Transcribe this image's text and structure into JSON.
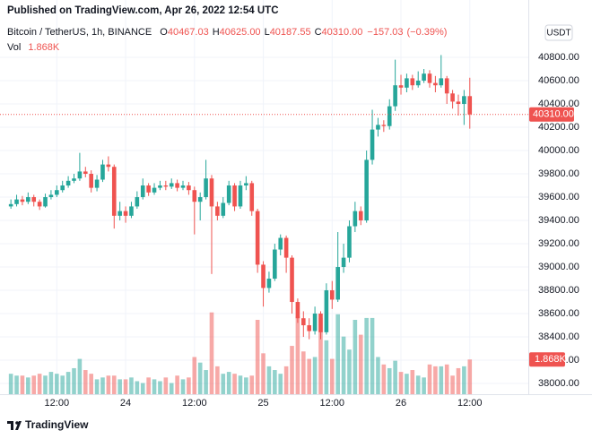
{
  "chart_data": {
    "type": "candlestick",
    "published": "Published on TradingView.com, Apr 26, 2022 12:54 UTC",
    "symbol": "Bitcoin / TetherUS, 1h, BINANCE",
    "ohlc_names": [
      "O",
      "H",
      "L",
      "C"
    ],
    "ohlc_labels": [
      "40467.03",
      "40625.00",
      "40187.55",
      "40310.00"
    ],
    "change": -157.03,
    "change_label": "−157.03",
    "change_percent": -0.39,
    "change_percent_label": "(−0.39%)",
    "volume_name": "Vol",
    "last_volume_label": "1.868K",
    "last_price_label": "40310.00",
    "currency": "USDT",
    "logo": "TradingView",
    "up_color": "#26a69a",
    "down_color": "#ef5350",
    "xlim": [
      -1.9,
      90.2
    ],
    "xticks": [
      {
        "value": 8,
        "label": "12:00"
      },
      {
        "value": 20,
        "label": "24"
      },
      {
        "value": 32,
        "label": "12:00"
      },
      {
        "value": 44,
        "label": "25"
      },
      {
        "value": 56,
        "label": "12:00"
      },
      {
        "value": 68,
        "label": "26"
      },
      {
        "value": 80,
        "label": "12:00"
      }
    ],
    "ylim": [
      37908,
      41100
    ],
    "yticks": [
      {
        "value": 38000,
        "label": "38000.00"
      },
      {
        "value": 38200,
        "label": "38200.00"
      },
      {
        "value": 38400,
        "label": "38400.00"
      },
      {
        "value": 38600,
        "label": "38600.00"
      },
      {
        "value": 38800,
        "label": "38800.00"
      },
      {
        "value": 39000,
        "label": "39000.00"
      },
      {
        "value": 39200,
        "label": "39200.00"
      },
      {
        "value": 39400,
        "label": "39400.00"
      },
      {
        "value": 39600,
        "label": "39600.00"
      },
      {
        "value": 39800,
        "label": "39800.00"
      },
      {
        "value": 40000,
        "label": "40000.00"
      },
      {
        "value": 40200,
        "label": "40200.00"
      },
      {
        "value": 40400,
        "label": "40400.00"
      },
      {
        "value": 40600,
        "label": "40600.00"
      },
      {
        "value": 40800,
        "label": "40800.00"
      }
    ],
    "volume_ylim": [
      0,
      20
    ],
    "open": [
      39520,
      39540,
      39580,
      39560,
      39600,
      39560,
      39520,
      39600,
      39620,
      39660,
      39700,
      39740,
      39760,
      39820,
      39800,
      39680,
      39750,
      39880,
      39860,
      39440,
      39480,
      39440,
      39520,
      39600,
      39700,
      39640,
      39680,
      39700,
      39690,
      39720,
      39680,
      39700,
      39660,
      39560,
      39600,
      39760,
      39520,
      39440,
      39550,
      39700,
      39520,
      39700,
      39720,
      39480,
      39020,
      38820,
      38900,
      39150,
      39250,
      39080,
      38700,
      38560,
      38500,
      38450,
      38600,
      38440,
      38800,
      38720,
      39000,
      39080,
      39350,
      39480,
      39400,
      39920,
      40180,
      40220,
      40210,
      40380,
      40560,
      40540,
      40620,
      40560,
      40600,
      40660,
      40580,
      40560,
      40620,
      40490,
      40420,
      40400,
      40467.03
    ],
    "high": [
      39580,
      39620,
      39610,
      39640,
      39620,
      39580,
      39630,
      39660,
      39700,
      39740,
      39780,
      39800,
      39980,
      39860,
      39830,
      39790,
      39920,
      39950,
      39880,
      39560,
      39520,
      39560,
      39650,
      39760,
      39720,
      39720,
      39740,
      39740,
      39760,
      39750,
      39740,
      39730,
      39690,
      39640,
      39920,
      39790,
      39560,
      39600,
      39740,
      39720,
      39740,
      39780,
      39740,
      39500,
      39050,
      38960,
      39200,
      39280,
      39270,
      39100,
      38730,
      38620,
      38560,
      38660,
      38620,
      38860,
      38880,
      39300,
      39200,
      39400,
      39560,
      39520,
      40000,
      40350,
      40280,
      40260,
      40440,
      40780,
      40650,
      40660,
      40650,
      40680,
      40700,
      40690,
      40640,
      40820,
      40640,
      40520,
      40480,
      40520,
      40625
    ],
    "low": [
      39500,
      39520,
      39530,
      39540,
      39520,
      39490,
      39510,
      39580,
      39600,
      39640,
      39680,
      39720,
      39740,
      39770,
      39640,
      39650,
      39730,
      39820,
      39330,
      39400,
      39380,
      39420,
      39500,
      39580,
      39610,
      39620,
      39660,
      39660,
      39670,
      39650,
      39660,
      39620,
      39280,
      39400,
      39580,
      38940,
      39400,
      39420,
      39530,
      39480,
      39500,
      39660,
      39440,
      38950,
      38660,
      38780,
      38880,
      39100,
      38950,
      38600,
      38520,
      38400,
      38380,
      38420,
      38380,
      38420,
      38640,
      38700,
      38950,
      39040,
      39300,
      39360,
      39380,
      39880,
      40120,
      40160,
      40180,
      40340,
      40480,
      40500,
      40520,
      40540,
      40580,
      40540,
      40500,
      40540,
      40400,
      40360,
      40300,
      40220,
      40187.55
    ],
    "close": [
      39540,
      39580,
      39560,
      39600,
      39560,
      39520,
      39600,
      39620,
      39660,
      39700,
      39740,
      39760,
      39820,
      39800,
      39680,
      39750,
      39880,
      39860,
      39440,
      39480,
      39440,
      39520,
      39600,
      39700,
      39640,
      39680,
      39700,
      39690,
      39720,
      39680,
      39700,
      39660,
      39560,
      39600,
      39760,
      39520,
      39440,
      39550,
      39700,
      39520,
      39700,
      39720,
      39480,
      39020,
      38820,
      38900,
      39150,
      39250,
      39080,
      38700,
      38560,
      38500,
      38450,
      38600,
      38440,
      38800,
      38720,
      39000,
      39080,
      39350,
      39480,
      39400,
      39920,
      40180,
      40220,
      40210,
      40380,
      40560,
      40540,
      40620,
      40560,
      40600,
      40660,
      40580,
      40560,
      40620,
      40490,
      40420,
      40400,
      40467.03,
      40310
    ],
    "volume": [
      1.1,
      1.0,
      1.0,
      0.9,
      1.0,
      1.1,
      1.0,
      1.2,
      1.1,
      1.0,
      1.2,
      1.4,
      1.9,
      1.3,
      1.1,
      0.8,
      0.9,
      1.0,
      1.0,
      0.8,
      0.8,
      0.9,
      0.7,
      0.6,
      0.9,
      0.8,
      0.7,
      0.9,
      0.6,
      1.0,
      0.8,
      0.9,
      2.0,
      1.7,
      1.3,
      4.4,
      1.5,
      1.1,
      1.2,
      1.1,
      1.0,
      0.9,
      1.0,
      4.0,
      2.2,
      1.5,
      1.3,
      1.1,
      1.5,
      2.6,
      4.2,
      2.3,
      1.9,
      2.0,
      4.1,
      2.9,
      1.9,
      4.3,
      3.1,
      2.4,
      4.0,
      3.2,
      4.1,
      4.1,
      2.0,
      1.6,
      1.4,
      1.8,
      1.2,
      1.1,
      1.3,
      1.0,
      0.9,
      1.6,
      1.5,
      1.5,
      1.6,
      1.0,
      1.4,
      1.5,
      1.868
    ]
  }
}
